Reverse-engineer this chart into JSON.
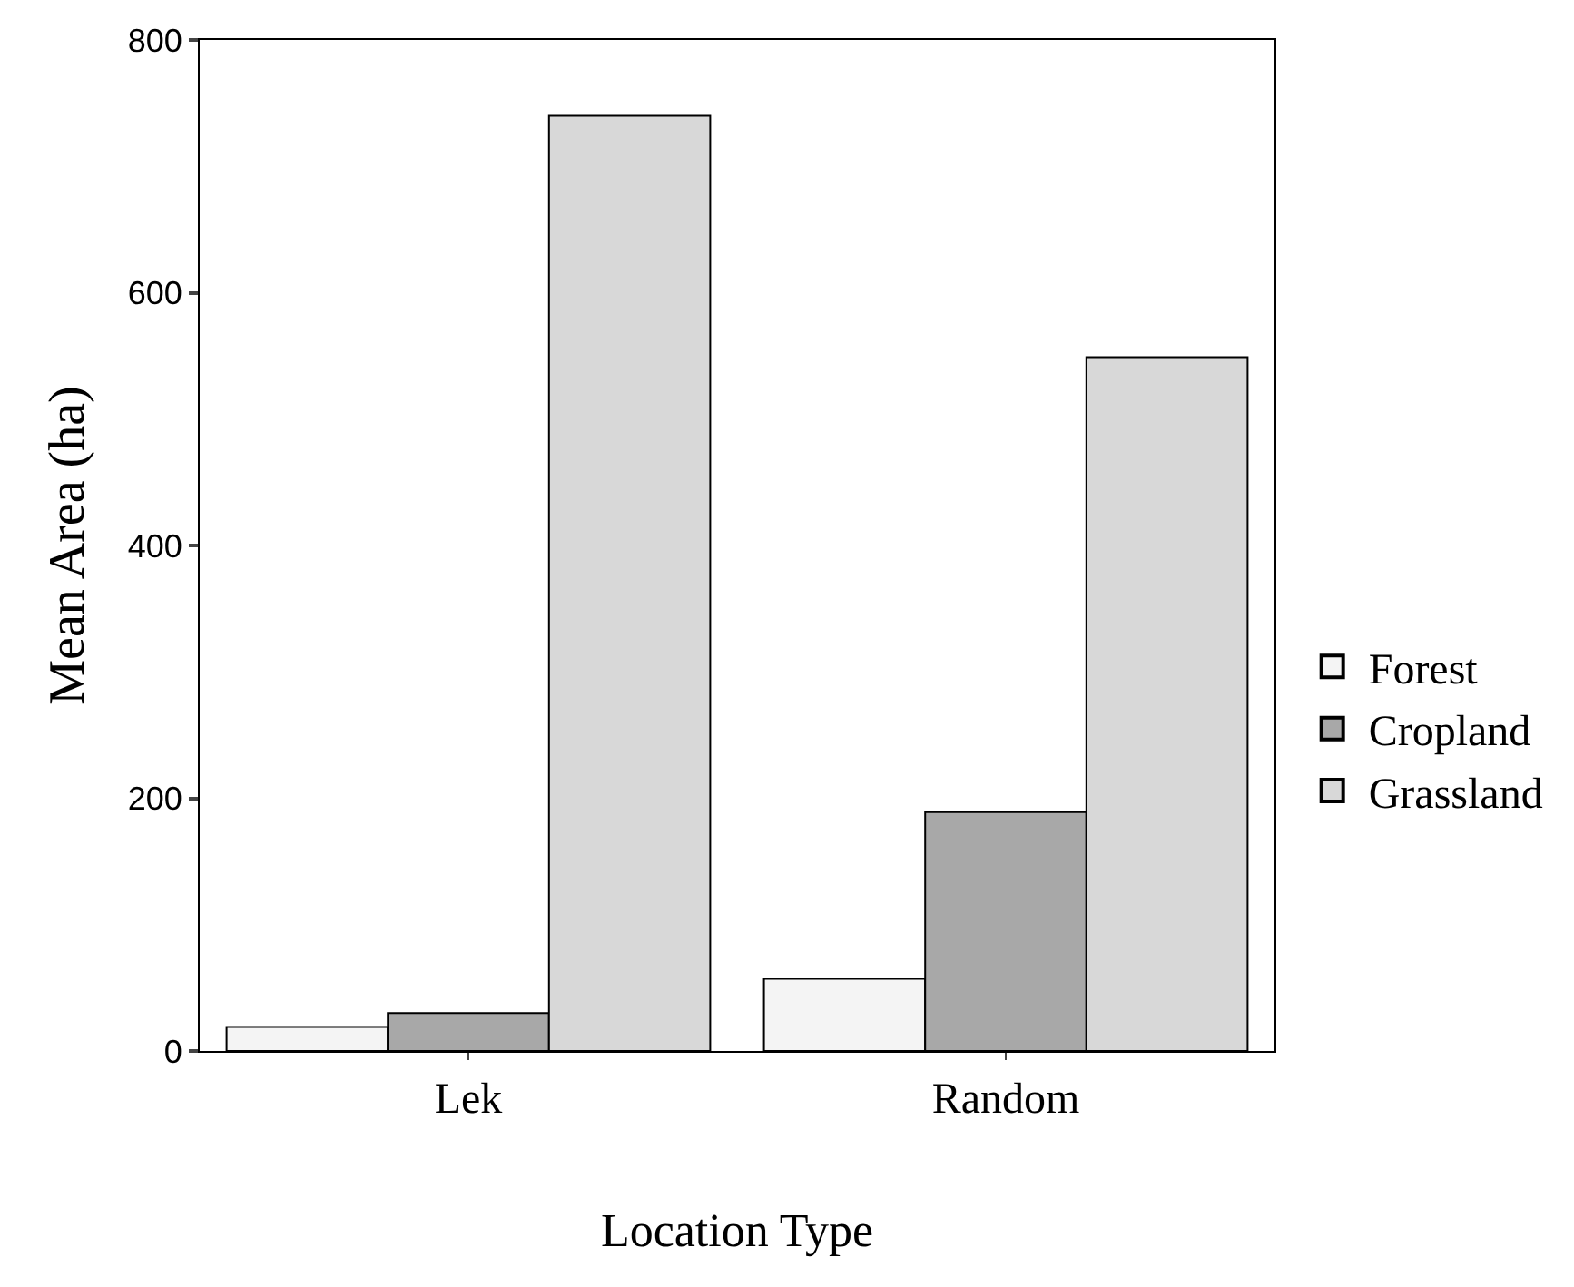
{
  "chart_data": {
    "type": "bar",
    "xlabel": "Location Type",
    "ylabel": "Mean Area (ha)",
    "categories": [
      "Lek",
      "Random"
    ],
    "series": [
      {
        "name": "Forest",
        "color": "#f4f4f4",
        "values": [
          19,
          57
        ]
      },
      {
        "name": "Cropland",
        "color": "#a8a8a8",
        "values": [
          30,
          189
        ]
      },
      {
        "name": "Grassland",
        "color": "#d8d8d8",
        "values": [
          740,
          549
        ]
      }
    ],
    "ylim": [
      0,
      800
    ],
    "yticks": [
      0,
      200,
      400,
      600,
      800
    ],
    "legend": "right"
  }
}
